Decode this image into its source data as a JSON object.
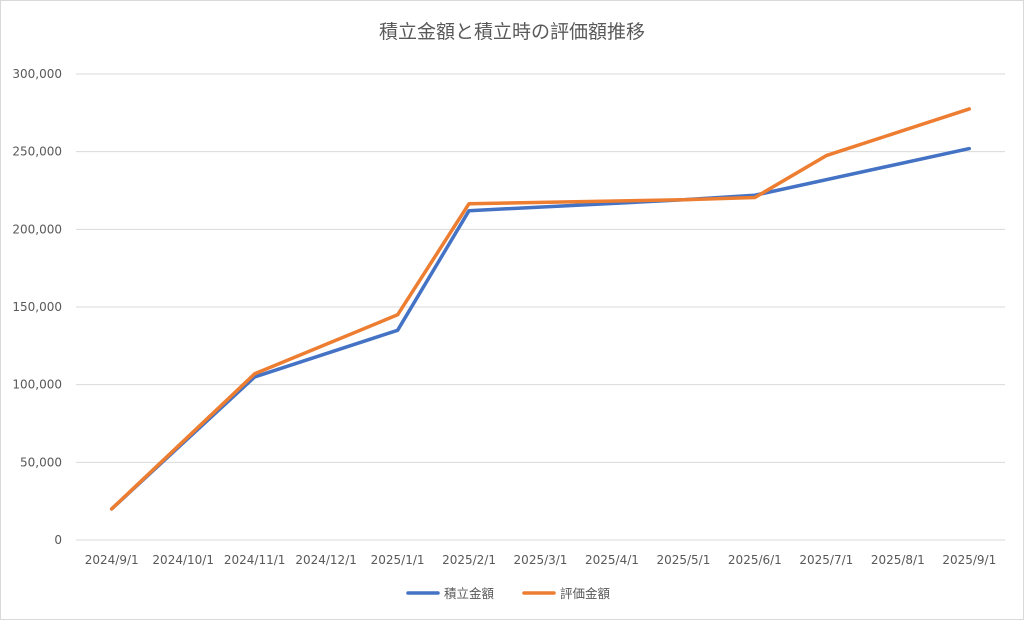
{
  "chart_data": {
    "type": "line",
    "title": "積立金額と積立時の評価額推移",
    "xlabel": "",
    "ylabel": "",
    "categories": [
      "2024/9/1",
      "2024/10/1",
      "2024/11/1",
      "2024/12/1",
      "2025/1/1",
      "2025/2/1",
      "2025/3/1",
      "2025/4/1",
      "2025/5/1",
      "2025/6/1",
      "2025/7/1",
      "2025/8/1",
      "2025/9/1"
    ],
    "ylim": [
      0,
      300000
    ],
    "yticks": [
      0,
      50000,
      100000,
      150000,
      200000,
      250000,
      300000
    ],
    "ytick_labels": [
      "0",
      "50,000",
      "100,000",
      "150,000",
      "200,000",
      "250,000",
      "300,000"
    ],
    "grid": true,
    "legend_position": "bottom",
    "series": [
      {
        "name": "積立金額",
        "color": "#4472C4",
        "values": [
          20000,
          null,
          105000,
          null,
          135000,
          212000,
          null,
          null,
          219000,
          222000,
          null,
          null,
          252000
        ]
      },
      {
        "name": "評価金額",
        "color": "#ED7D31",
        "values": [
          20000,
          null,
          107000,
          null,
          145000,
          216500,
          null,
          null,
          219000,
          220500,
          247500,
          null,
          277500
        ]
      }
    ]
  }
}
